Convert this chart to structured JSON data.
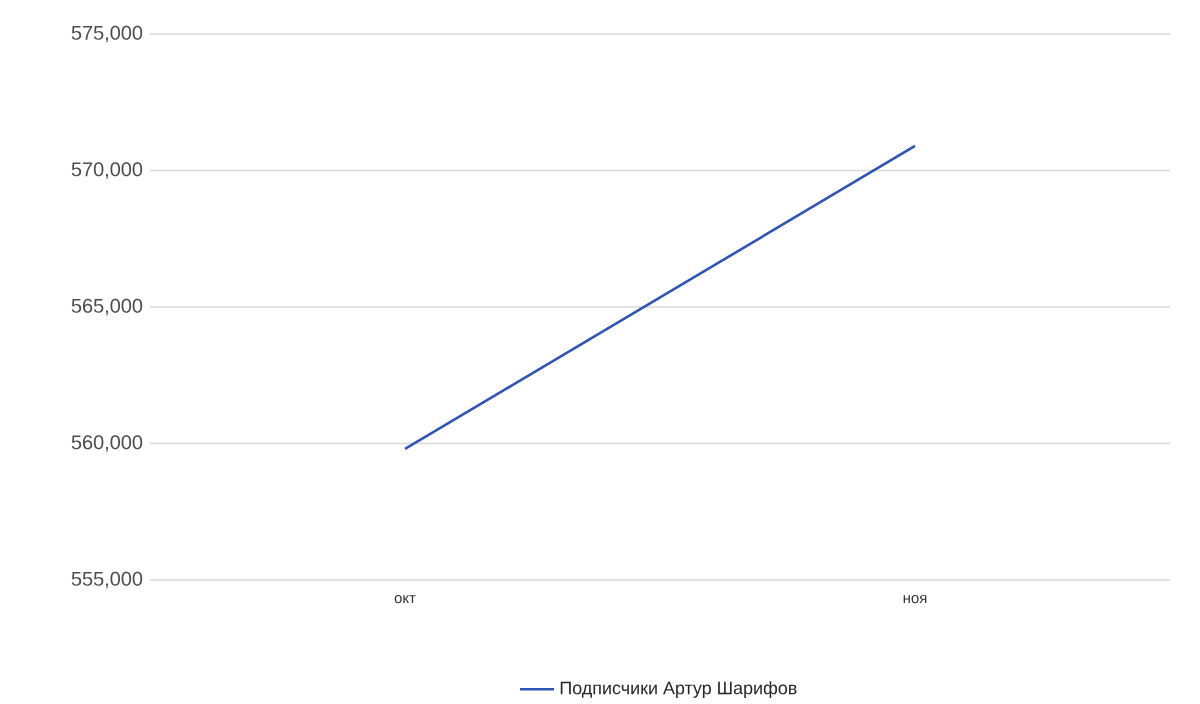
{
  "chart_data": {
    "type": "line",
    "categories": [
      "окт",
      "ноя"
    ],
    "series": [
      {
        "name": "Подписчики Артур Шарифов",
        "color": "#2f54b3",
        "values": [
          559800,
          570900
        ]
      }
    ],
    "ylim": [
      555000,
      575000
    ],
    "yticks": [
      {
        "value": 555000,
        "label": "555,000"
      },
      {
        "value": 560000,
        "label": "560,000"
      },
      {
        "value": 565000,
        "label": "565,000"
      },
      {
        "value": 570000,
        "label": "570,000"
      },
      {
        "value": 575000,
        "label": "575,000"
      }
    ],
    "grid": "y",
    "legend": "bottom",
    "marker": "none",
    "line_style": "solid"
  }
}
